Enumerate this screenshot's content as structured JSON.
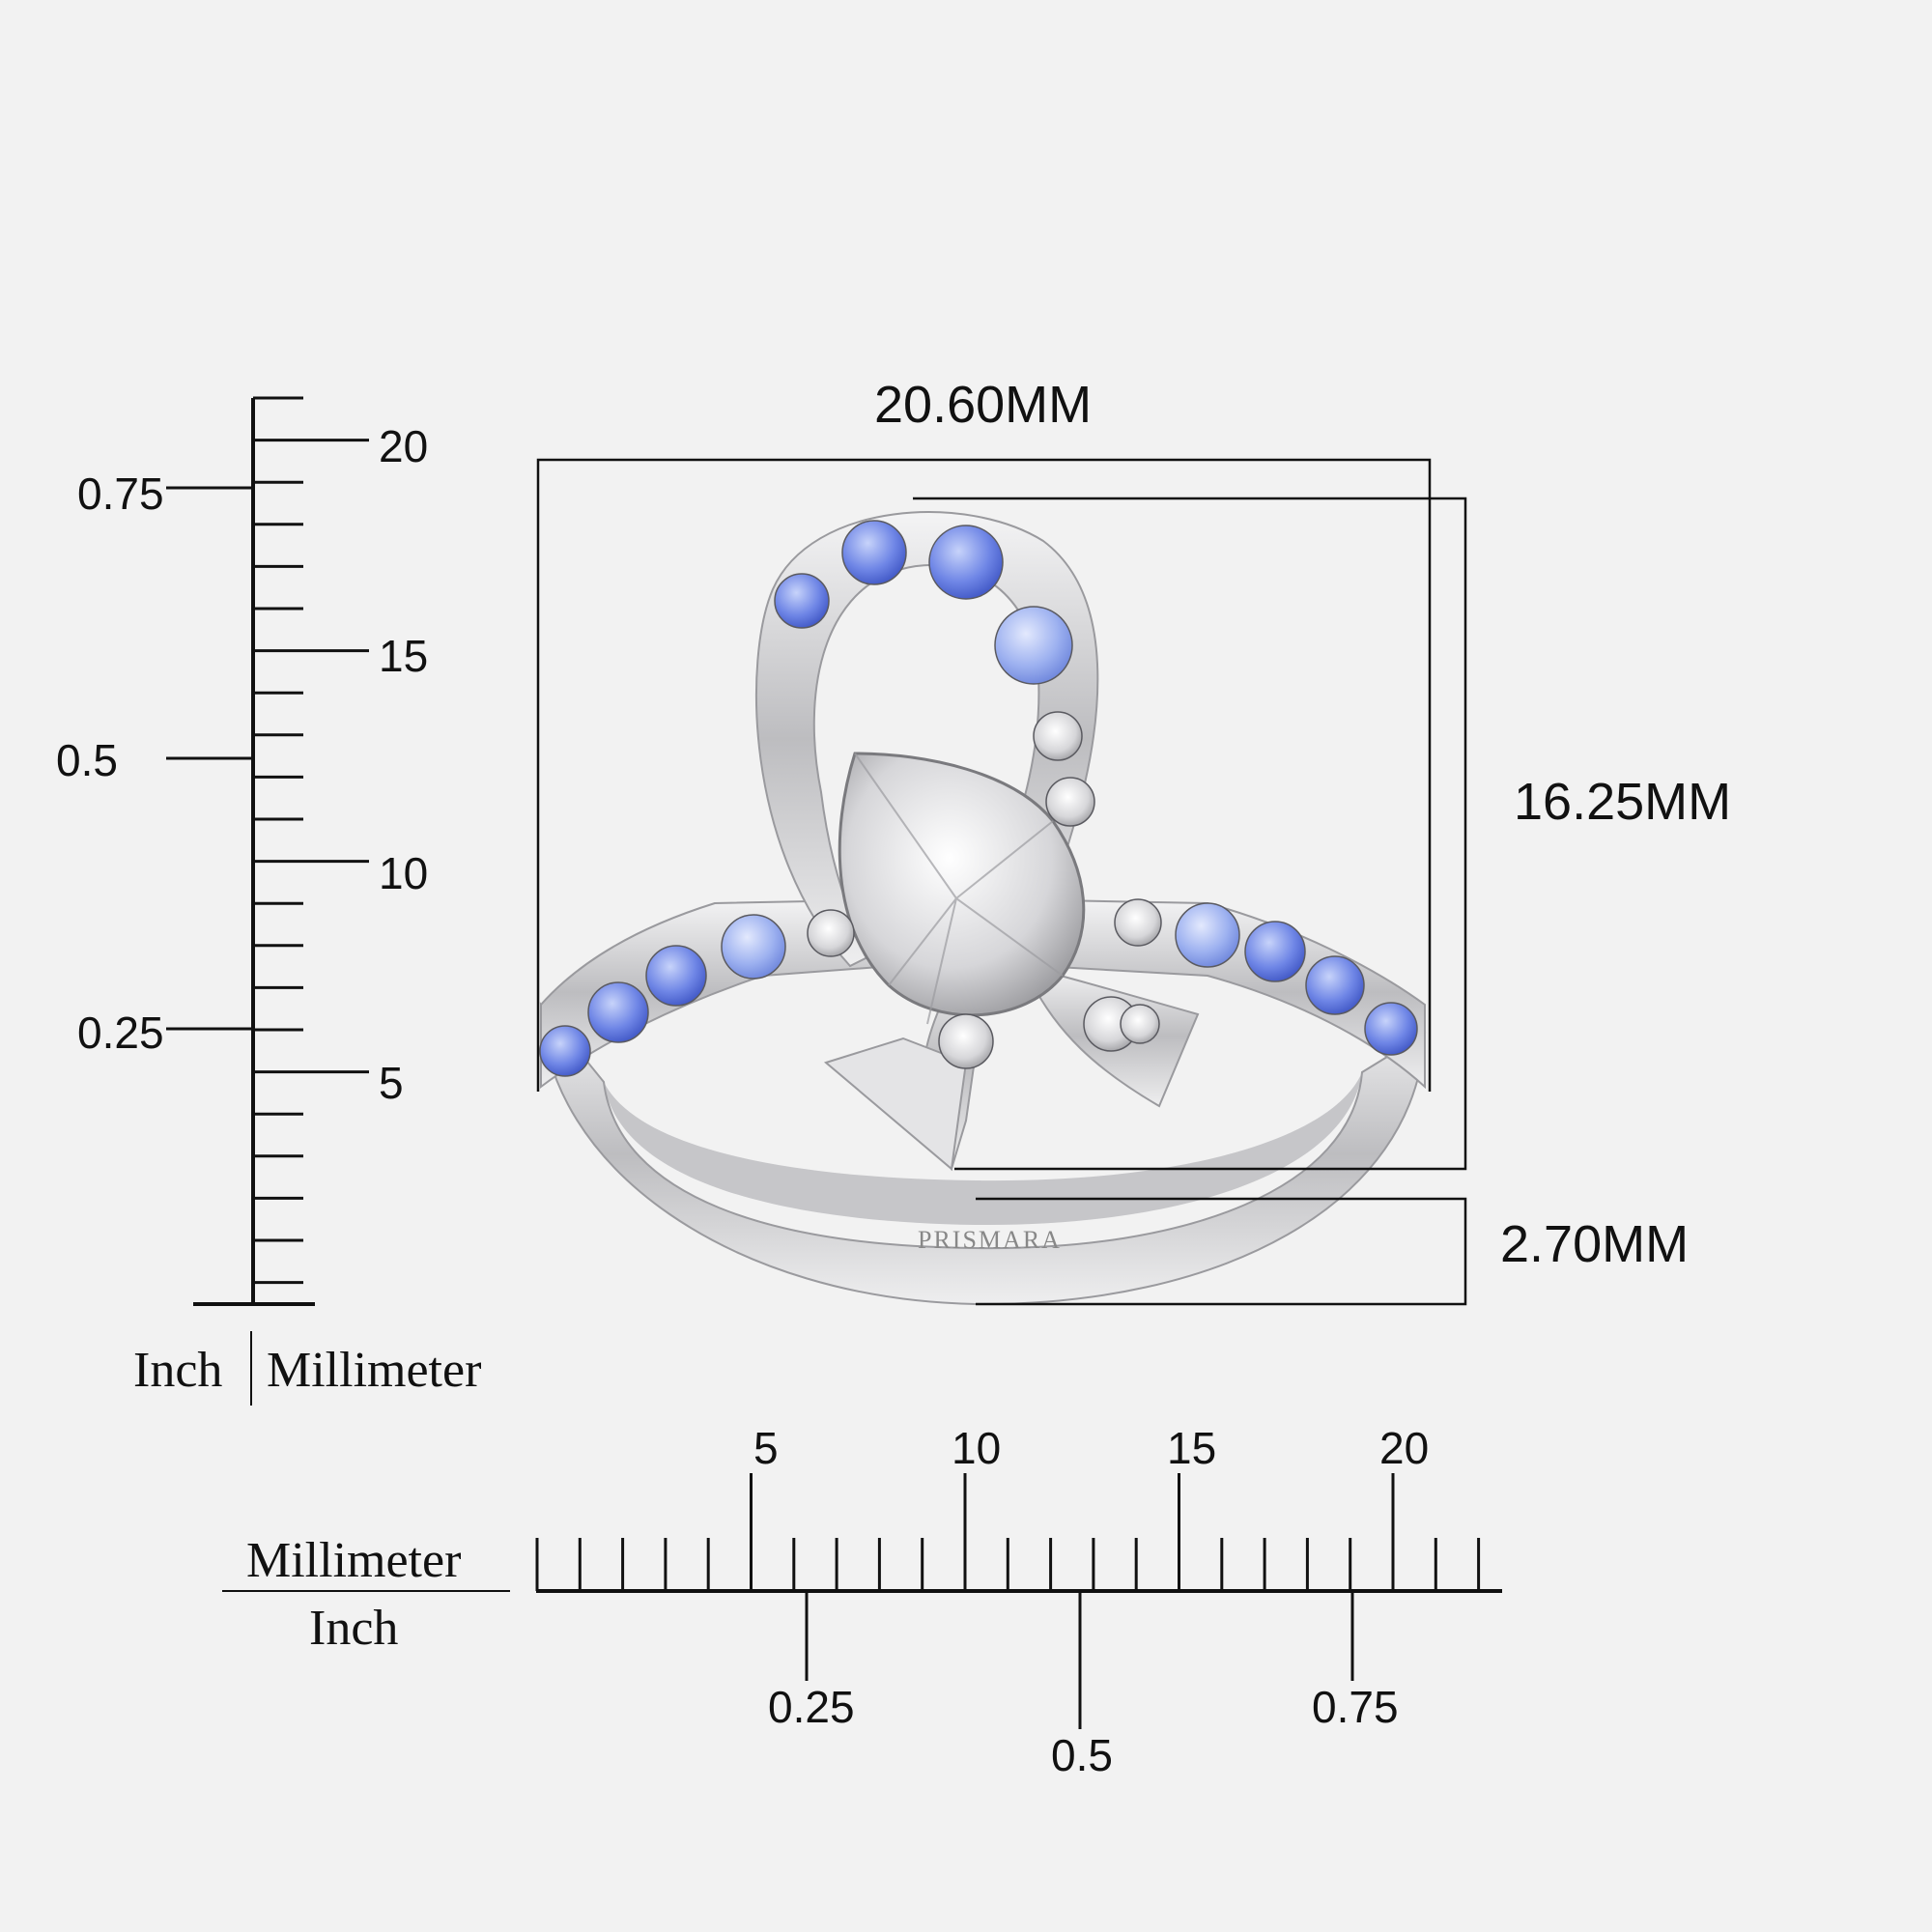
{
  "dimensions": {
    "width": "20.60MM",
    "height": "16.25MM",
    "band_thickness": "2.70MM"
  },
  "vertical_scale": {
    "mm_labels": [
      "20",
      "15",
      "10",
      "5"
    ],
    "inch_labels": [
      "0.75",
      "0.5",
      "0.25"
    ],
    "unit_left": "Inch",
    "unit_right": "Millimeter"
  },
  "horizontal_scale": {
    "mm_labels": [
      "5",
      "10",
      "15",
      "20"
    ],
    "inch_labels": [
      "0.25",
      "0.5",
      "0.75"
    ],
    "unit_top": "Millimeter",
    "unit_bottom": "Inch"
  },
  "product": {
    "brand_engraving": "PRISMARA",
    "stone_colors": {
      "sapphire": "#6f86e6",
      "sapphire_light": "#9db1f0",
      "diamond": "#e6e6e8",
      "metal": "#d9d9db"
    }
  }
}
